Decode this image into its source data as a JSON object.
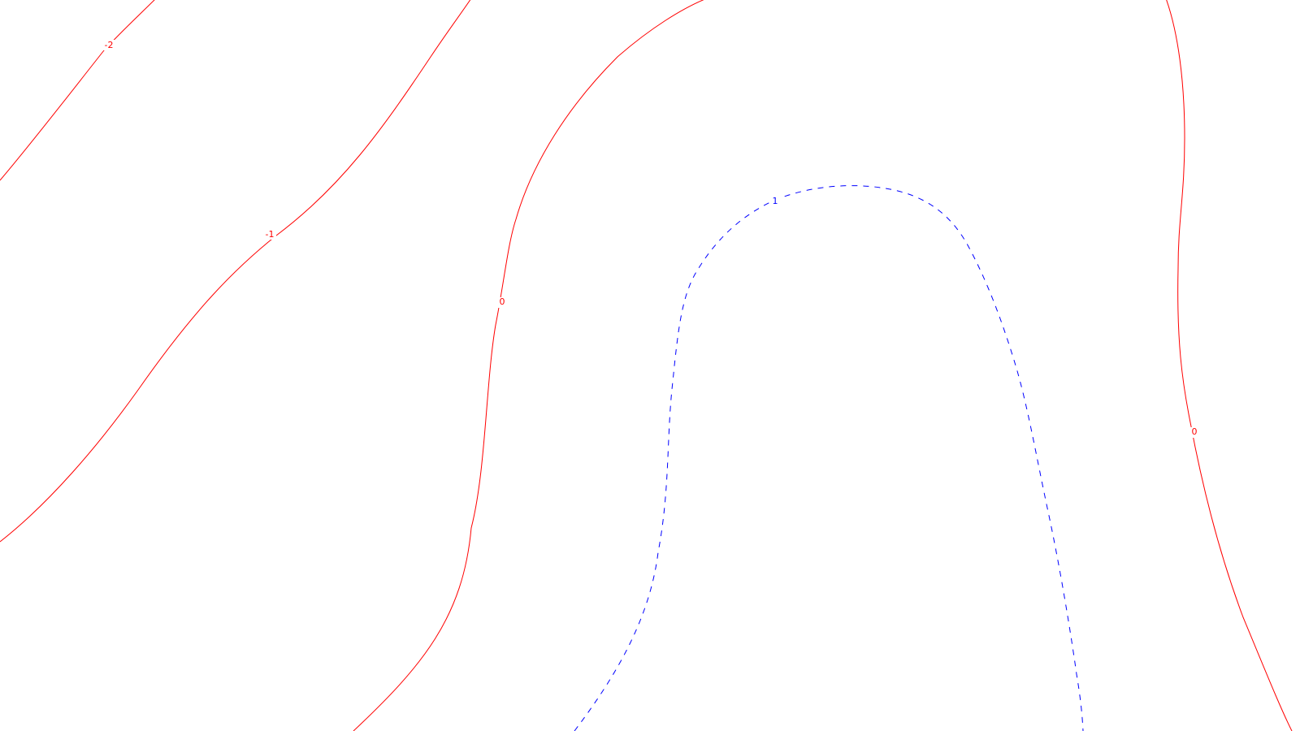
{
  "contours": {
    "colors": {
      "negative": "#ff0000",
      "positive": "#0000ff",
      "background": "#ffffff"
    },
    "labels": {
      "minus_two": "-2",
      "minus_one": "-1",
      "zero_left": "0",
      "zero_right": "0",
      "one": "1"
    }
  }
}
